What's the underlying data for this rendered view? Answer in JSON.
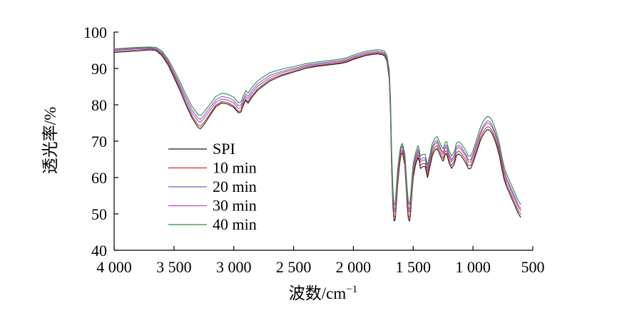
{
  "chart_data": {
    "type": "line",
    "xlabel": "波数/cm",
    "xlabel_sup": "−1",
    "ylabel": "透光率/%",
    "xlim": [
      4000,
      500
    ],
    "x_reversed": true,
    "ylim": [
      40,
      100
    ],
    "x_ticks": [
      4000,
      3500,
      3000,
      2500,
      2000,
      1500,
      1000,
      500
    ],
    "x_tick_labels": [
      "4 000",
      "3 500",
      "3 000",
      "2 500",
      "2 000",
      "1 500",
      "1 000",
      "500"
    ],
    "y_ticks": [
      40,
      50,
      60,
      70,
      80,
      90,
      100
    ],
    "y_tick_labels": [
      "40",
      "50",
      "60",
      "70",
      "80",
      "90",
      "100"
    ],
    "grid": false,
    "legend_position": "left-middle",
    "x": [
      4000,
      3900,
      3800,
      3700,
      3650,
      3600,
      3550,
      3500,
      3450,
      3400,
      3350,
      3300,
      3280,
      3250,
      3200,
      3150,
      3100,
      3050,
      3000,
      2980,
      2960,
      2940,
      2920,
      2900,
      2880,
      2860,
      2850,
      2800,
      2700,
      2600,
      2500,
      2400,
      2300,
      2200,
      2150,
      2100,
      2050,
      2000,
      1950,
      1900,
      1850,
      1800,
      1760,
      1740,
      1720,
      1700,
      1690,
      1680,
      1670,
      1660,
      1650,
      1640,
      1630,
      1620,
      1610,
      1600,
      1590,
      1570,
      1560,
      1550,
      1540,
      1530,
      1520,
      1510,
      1500,
      1480,
      1460,
      1450,
      1440,
      1420,
      1400,
      1390,
      1380,
      1360,
      1340,
      1320,
      1300,
      1280,
      1260,
      1250,
      1240,
      1230,
      1220,
      1200,
      1180,
      1160,
      1150,
      1140,
      1120,
      1100,
      1080,
      1060,
      1040,
      1020,
      1000,
      980,
      960,
      940,
      920,
      900,
      880,
      860,
      840,
      820,
      800,
      780,
      760,
      740,
      720,
      700,
      680,
      660,
      640,
      620,
      610,
      600
    ],
    "series": [
      {
        "name": "SPI",
        "color": "#1a1a1a",
        "values": [
          94.4,
          94.6,
          94.8,
          95.1,
          94.9,
          93.5,
          91.0,
          87.5,
          84.0,
          80.0,
          76.5,
          73.8,
          73.4,
          74.5,
          77.0,
          79.5,
          80.5,
          80.2,
          79.3,
          78.5,
          77.8,
          78.0,
          79.8,
          81.2,
          80.4,
          81.5,
          82.0,
          84.0,
          86.5,
          88.0,
          89.0,
          90.0,
          90.6,
          91.0,
          91.2,
          91.4,
          91.8,
          92.5,
          93.0,
          93.5,
          93.8,
          94.0,
          93.8,
          93.5,
          92.0,
          87.0,
          78.0,
          62.0,
          52.0,
          48.0,
          48.5,
          53.0,
          58.0,
          61.5,
          64.5,
          66.5,
          66.8,
          63.5,
          58.0,
          52.0,
          48.5,
          48.0,
          51.0,
          56.0,
          60.0,
          63.5,
          65.5,
          64.5,
          62.5,
          63.0,
          63.0,
          61.5,
          60.0,
          63.0,
          66.0,
          67.5,
          68.0,
          66.5,
          65.0,
          64.5,
          65.5,
          66.5,
          66.5,
          64.0,
          62.5,
          63.5,
          64.5,
          66.0,
          66.5,
          66.0,
          65.0,
          64.0,
          62.5,
          62.5,
          64.0,
          66.0,
          68.0,
          70.0,
          71.5,
          72.5,
          73.2,
          73.0,
          72.0,
          70.5,
          68.5,
          66.0,
          62.5,
          59.5,
          57.5,
          56.0,
          54.5,
          53.0,
          51.5,
          50.0,
          49.5,
          49.0
        ]
      },
      {
        "name": "10 min",
        "color": "#d42a2a",
        "values": [
          94.7,
          94.9,
          95.1,
          95.3,
          95.1,
          93.8,
          91.3,
          87.9,
          84.4,
          80.4,
          77.0,
          74.5,
          74.1,
          75.1,
          77.5,
          79.9,
          80.9,
          80.6,
          79.7,
          78.9,
          78.2,
          78.4,
          80.2,
          81.6,
          80.8,
          81.9,
          82.4,
          84.4,
          86.9,
          88.3,
          89.3,
          90.3,
          90.8,
          91.2,
          91.4,
          91.6,
          92.0,
          92.7,
          93.2,
          93.7,
          94.0,
          94.2,
          94.0,
          93.7,
          92.3,
          87.5,
          78.8,
          63.0,
          53.0,
          49.0,
          49.5,
          54.0,
          59.0,
          62.4,
          65.3,
          67.2,
          67.5,
          64.3,
          59.0,
          53.0,
          49.5,
          49.0,
          52.0,
          57.0,
          61.0,
          64.3,
          66.3,
          65.3,
          63.3,
          63.8,
          63.8,
          62.3,
          60.8,
          63.8,
          66.8,
          68.3,
          68.8,
          67.3,
          65.8,
          65.3,
          66.3,
          67.3,
          67.3,
          64.8,
          63.3,
          64.3,
          65.3,
          66.8,
          67.3,
          66.8,
          65.8,
          64.8,
          63.3,
          63.3,
          64.8,
          66.8,
          68.8,
          70.8,
          72.3,
          73.3,
          74.0,
          73.8,
          72.8,
          71.3,
          69.3,
          66.8,
          63.3,
          60.3,
          58.3,
          56.8,
          55.3,
          53.8,
          52.3,
          50.8,
          50.3,
          49.8
        ]
      },
      {
        "name": "20 min",
        "color": "#5f6fb8",
        "values": [
          95.0,
          95.2,
          95.4,
          95.5,
          95.3,
          94.1,
          91.7,
          88.4,
          85.0,
          81.2,
          77.8,
          75.6,
          75.2,
          76.2,
          78.4,
          80.7,
          81.6,
          81.3,
          80.5,
          79.7,
          79.0,
          79.2,
          80.9,
          82.3,
          81.6,
          82.6,
          83.1,
          85.1,
          87.5,
          88.8,
          89.7,
          90.6,
          91.1,
          91.5,
          91.7,
          91.9,
          92.3,
          93.0,
          93.5,
          94.0,
          94.3,
          94.5,
          94.3,
          94.0,
          92.7,
          88.2,
          80.0,
          64.5,
          54.5,
          50.5,
          51.0,
          55.5,
          60.5,
          63.6,
          66.3,
          68.0,
          68.4,
          65.3,
          60.2,
          54.5,
          51.0,
          50.5,
          53.4,
          58.2,
          62.0,
          65.1,
          67.2,
          66.2,
          64.3,
          64.8,
          64.8,
          63.3,
          61.8,
          64.8,
          67.8,
          69.2,
          69.7,
          68.2,
          66.8,
          66.3,
          67.3,
          68.3,
          68.3,
          65.8,
          64.3,
          65.3,
          66.3,
          67.8,
          68.3,
          67.8,
          66.8,
          65.8,
          64.3,
          64.3,
          65.8,
          67.8,
          69.8,
          71.8,
          73.3,
          74.3,
          75.0,
          74.8,
          73.8,
          72.3,
          70.3,
          67.8,
          64.3,
          61.3,
          59.3,
          57.8,
          56.3,
          54.8,
          53.3,
          51.8,
          51.3,
          50.8
        ]
      },
      {
        "name": "30 min",
        "color": "#b04ab8",
        "values": [
          95.2,
          95.4,
          95.6,
          95.7,
          95.5,
          94.4,
          92.1,
          88.9,
          85.6,
          82.0,
          78.6,
          76.4,
          76.0,
          77.0,
          79.2,
          81.4,
          82.3,
          82.0,
          81.2,
          80.4,
          79.7,
          79.9,
          81.6,
          83.0,
          82.3,
          83.3,
          83.8,
          85.8,
          88.1,
          89.2,
          90.0,
          90.9,
          91.4,
          91.8,
          92.0,
          92.2,
          92.6,
          93.3,
          93.8,
          94.3,
          94.6,
          94.8,
          94.6,
          94.3,
          93.0,
          88.8,
          80.8,
          65.5,
          55.5,
          51.2,
          51.6,
          56.4,
          61.3,
          64.3,
          66.8,
          68.4,
          68.8,
          65.9,
          61.0,
          55.5,
          51.8,
          51.2,
          54.2,
          59.0,
          62.8,
          65.8,
          67.8,
          66.8,
          64.9,
          65.4,
          65.4,
          63.9,
          62.4,
          65.4,
          68.4,
          69.8,
          70.3,
          68.8,
          67.4,
          66.9,
          67.9,
          68.9,
          68.9,
          66.4,
          64.9,
          65.9,
          66.9,
          68.4,
          68.9,
          68.4,
          67.4,
          66.4,
          64.9,
          64.9,
          66.4,
          68.4,
          70.4,
          72.4,
          73.9,
          74.9,
          75.6,
          75.4,
          74.4,
          72.9,
          70.9,
          68.4,
          64.9,
          61.9,
          59.9,
          58.4,
          56.9,
          55.4,
          53.9,
          52.4,
          51.9,
          51.4
        ]
      },
      {
        "name": "40 min",
        "color": "#2e8b3e",
        "values": [
          95.4,
          95.6,
          95.8,
          95.9,
          95.8,
          94.8,
          92.6,
          89.6,
          86.4,
          82.9,
          79.6,
          77.4,
          77.0,
          78.0,
          80.1,
          82.3,
          83.2,
          82.9,
          82.1,
          81.3,
          80.6,
          80.8,
          82.5,
          83.9,
          83.2,
          84.2,
          84.7,
          86.6,
          88.8,
          89.8,
          90.5,
          91.3,
          91.8,
          92.2,
          92.4,
          92.6,
          93.0,
          93.7,
          94.2,
          94.7,
          95.0,
          95.2,
          95.0,
          94.8,
          93.6,
          89.6,
          82.0,
          67.0,
          57.0,
          52.5,
          52.8,
          57.6,
          62.4,
          65.2,
          67.5,
          69.0,
          69.4,
          66.6,
          62.0,
          56.8,
          53.2,
          52.6,
          55.4,
          60.0,
          63.8,
          66.8,
          68.8,
          67.8,
          65.9,
          66.4,
          66.4,
          64.9,
          63.4,
          66.4,
          69.4,
          70.8,
          71.3,
          69.8,
          68.4,
          67.9,
          68.9,
          69.9,
          69.9,
          67.4,
          65.9,
          66.9,
          67.9,
          69.4,
          69.9,
          69.4,
          68.4,
          67.4,
          65.9,
          65.9,
          67.4,
          69.4,
          71.6,
          73.6,
          75.2,
          76.2,
          76.8,
          76.6,
          75.6,
          74.0,
          72.0,
          69.5,
          66.0,
          63.0,
          61.0,
          59.5,
          58.0,
          56.5,
          55.0,
          53.5,
          53.0,
          52.5
        ]
      }
    ]
  }
}
